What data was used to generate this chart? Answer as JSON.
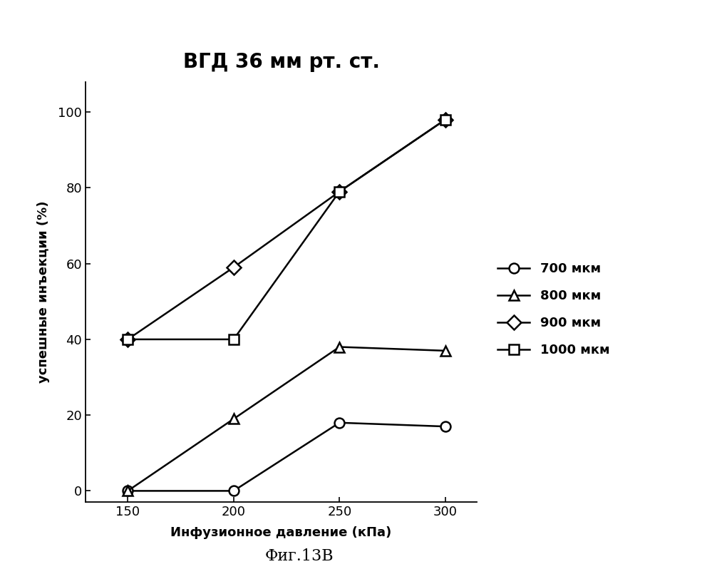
{
  "title": "ВГД 36 мм рт. ст.",
  "xlabel": "Инфузионное давление (кПа)",
  "ylabel": "успешные инъекции (%)",
  "caption": "Фиг.13В",
  "x_values": [
    150,
    200,
    250,
    300
  ],
  "x_ticks": [
    150,
    200,
    250,
    300
  ],
  "y_ticks": [
    0,
    20,
    40,
    60,
    80,
    100
  ],
  "ylim": [
    -3,
    108
  ],
  "xlim": [
    130,
    315
  ],
  "series": [
    {
      "label": "700 мкм",
      "y": [
        0,
        0,
        18,
        17
      ],
      "marker": "o",
      "color": "#000000"
    },
    {
      "label": "800 мкм",
      "y": [
        0,
        19,
        38,
        37
      ],
      "marker": "^",
      "color": "#000000"
    },
    {
      "label": "900 мкм",
      "y": [
        40,
        59,
        79,
        98
      ],
      "marker": "D",
      "color": "#000000"
    },
    {
      "label": "1000 мкм",
      "y": [
        40,
        40,
        79,
        98
      ],
      "marker": "s",
      "color": "#000000"
    }
  ],
  "title_fontsize": 20,
  "label_fontsize": 13,
  "tick_fontsize": 13,
  "legend_fontsize": 13,
  "caption_fontsize": 16,
  "linewidth": 1.8,
  "markersize": 10,
  "background_color": "#ffffff"
}
